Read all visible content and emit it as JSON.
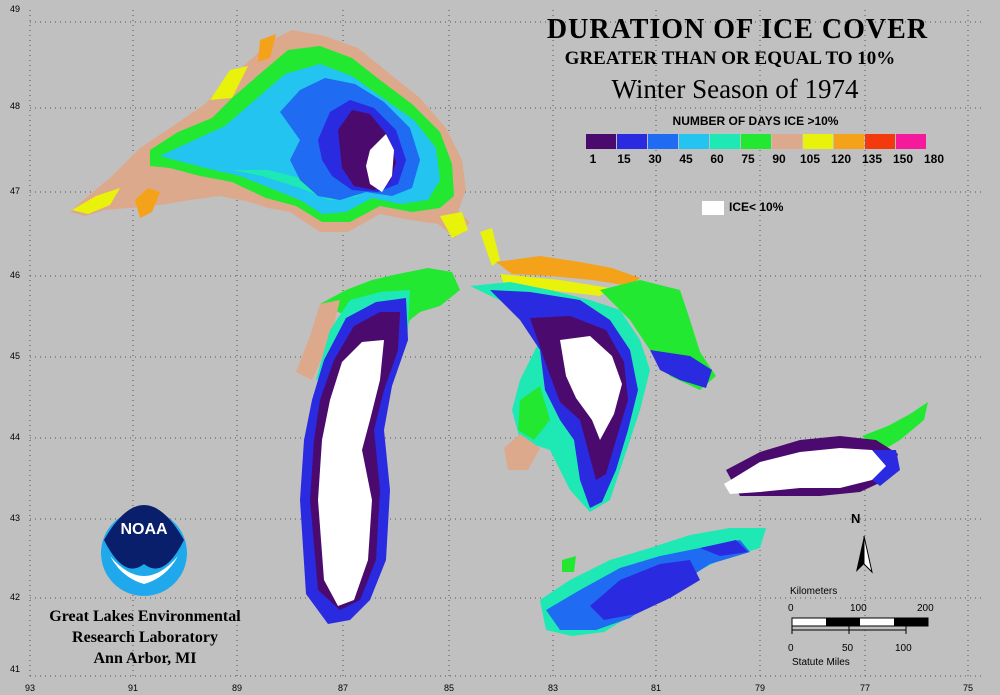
{
  "title": {
    "line1": "DURATION OF ICE COVER",
    "line2": "GREATER THAN OR EQUAL TO 10%",
    "line3": "Winter Season of 1974"
  },
  "legend": {
    "title": "NUMBER OF DAYS ICE >10%",
    "colors": [
      "#4b0a6e",
      "#2a2ae0",
      "#1f6bf2",
      "#23c4f0",
      "#1ee8b4",
      "#22e832",
      "#dca98c",
      "#e8f20a",
      "#f4a21a",
      "#f43a0c",
      "#f41a9b"
    ],
    "labels": [
      "1",
      "15",
      "30",
      "45",
      "60",
      "75",
      "90",
      "105",
      "120",
      "135",
      "150",
      "180"
    ],
    "ice_label": "ICE< 10%"
  },
  "lat_labels": [
    "49",
    "48",
    "47",
    "46",
    "45",
    "44",
    "43",
    "42",
    "41"
  ],
  "lon_labels": [
    "93",
    "91",
    "89",
    "87",
    "85",
    "83",
    "81",
    "79",
    "77",
    "75"
  ],
  "scale": {
    "km_title": "Kilometers",
    "km_ticks": [
      "0",
      "100",
      "200"
    ],
    "mi_ticks": [
      "0",
      "50",
      "100"
    ],
    "mi_title": "Statute Miles"
  },
  "north_label": "N",
  "noaa_text": "NOAA",
  "lab": {
    "line1": "Great Lakes Environmental",
    "line2": "Research Laboratory",
    "line3": "Ann Arbor, MI"
  }
}
